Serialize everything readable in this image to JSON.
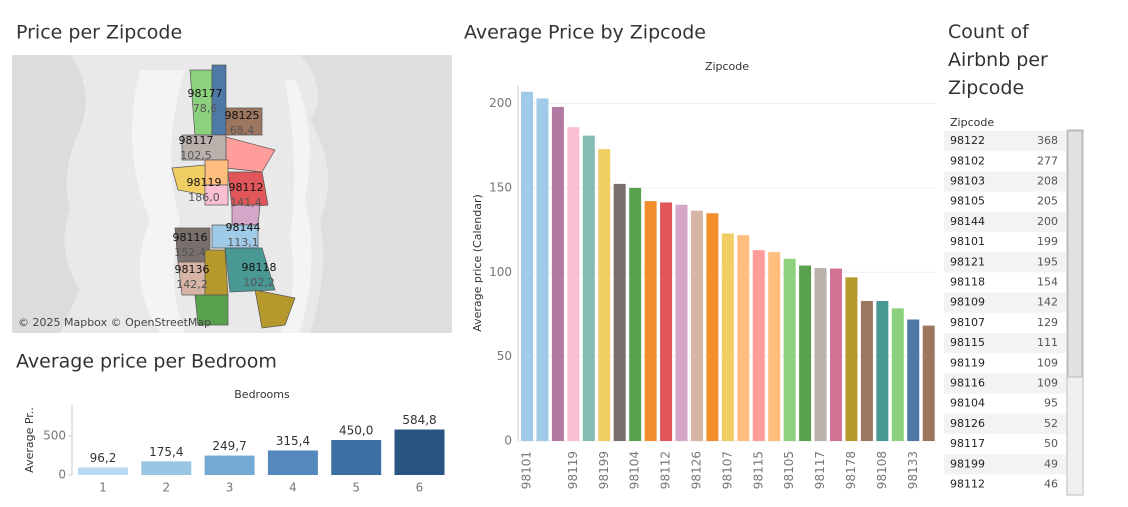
{
  "chart_data": [
    {
      "type": "bar",
      "title": "Average Price by Zipcode",
      "x_label": "Zipcode",
      "y_label": "Average price (Calendar)",
      "categories": [
        "98101",
        null,
        null,
        "98119",
        null,
        "98199",
        null,
        "98104",
        null,
        "98112",
        null,
        "98126",
        null,
        "98107",
        null,
        "98115",
        null,
        "98105",
        null,
        "98117",
        null,
        "98178",
        null,
        "98108",
        null,
        "98133",
        null
      ],
      "values": [
        207,
        203,
        198,
        186.0,
        181,
        173,
        152.4,
        150,
        142.2,
        141.4,
        140,
        136.5,
        135,
        123,
        122,
        113.1,
        112,
        108,
        104,
        102.5,
        102.2,
        97,
        83,
        83,
        78.6,
        72,
        68.4
      ],
      "colors": [
        "#a0cbe8",
        "#a0cbe8",
        "#b07aa1",
        "#fabfd2",
        "#86bcb6",
        "#f1ce63",
        "#79706e",
        "#59a14f",
        "#f28e2b",
        "#e15759",
        "#d4a6c8",
        "#d7b5a6",
        "#f28e2b",
        "#f1ce63",
        "#ffbe7d",
        "#ff9d9a",
        "#ffbe7d",
        "#8cd17d",
        "#59a14f",
        "#bab0ac",
        "#d37295",
        "#b6992d",
        "#9d7660",
        "#499894",
        "#8cd17d",
        "#4e79a7",
        "#9d7660"
      ],
      "ylim": [
        0,
        211
      ],
      "yticks": [
        0,
        50,
        100,
        150,
        200
      ],
      "grid": true
    },
    {
      "type": "bar",
      "title": "Average price per Bedroom",
      "x_label": "Bedrooms",
      "y_label": "Average Pr..",
      "categories": [
        "1",
        "2",
        "3",
        "4",
        "5",
        "6"
      ],
      "values": [
        96.2,
        175.4,
        249.7,
        315.4,
        450.0,
        584.8
      ],
      "value_labels": [
        "96,2",
        "175,4",
        "249,7",
        "315,4",
        "450,0",
        "584,8"
      ],
      "colors": [
        "#b9daf0",
        "#9ac6e6",
        "#76a9d1",
        "#5589bd",
        "#3e6fa3",
        "#2a5582"
      ],
      "ylim": [
        0,
        900
      ],
      "yticks": [
        0,
        500
      ],
      "grid": false
    }
  ],
  "map": {
    "title": "Price per Zipcode",
    "attribution": "© 2025 Mapbox © OpenStreetMap",
    "labels": [
      {
        "zip": "98177",
        "price": "78,6"
      },
      {
        "zip": "98125",
        "price": "68,4"
      },
      {
        "zip": "98117",
        "price": "102,5"
      },
      {
        "zip": "98119",
        "price": "186,0"
      },
      {
        "zip": "98112",
        "price": "141,4"
      },
      {
        "zip": "98144",
        "price": "113,1"
      },
      {
        "zip": "98116",
        "price": "152,4"
      },
      {
        "zip": "98136",
        "price": "142,2"
      },
      {
        "zip": "98118",
        "price": "102,2"
      }
    ]
  },
  "table": {
    "title": "Count of Airbnb per Zipcode",
    "header": "Zipcode",
    "rows": [
      [
        "98122",
        368
      ],
      [
        "98102",
        277
      ],
      [
        "98103",
        208
      ],
      [
        "98105",
        205
      ],
      [
        "98144",
        200
      ],
      [
        "98101",
        199
      ],
      [
        "98121",
        195
      ],
      [
        "98118",
        154
      ],
      [
        "98109",
        142
      ],
      [
        "98107",
        129
      ],
      [
        "98115",
        111
      ],
      [
        "98119",
        109
      ],
      [
        "98116",
        109
      ],
      [
        "98104",
        95
      ],
      [
        "98126",
        52
      ],
      [
        "98117",
        50
      ],
      [
        "98199",
        49
      ],
      [
        "98112",
        46
      ]
    ]
  }
}
